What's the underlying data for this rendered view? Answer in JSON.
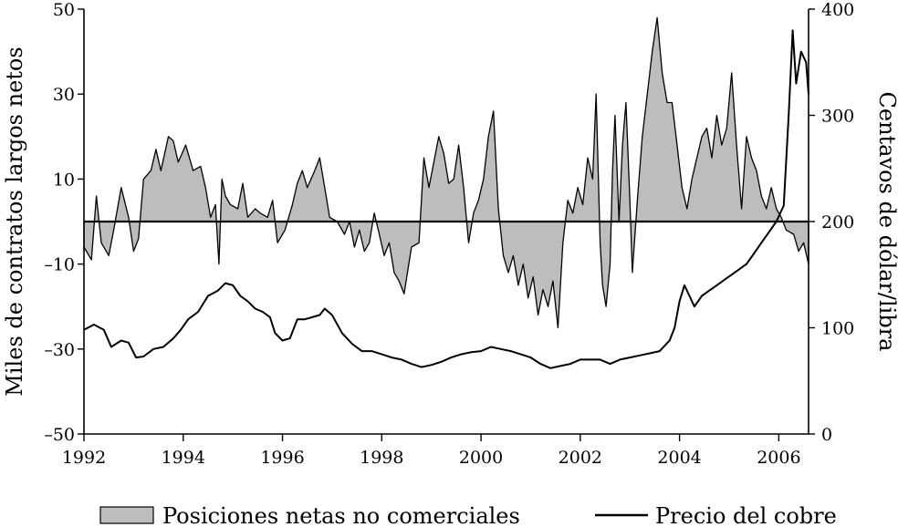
{
  "chart_data": {
    "type": "area",
    "title": "",
    "xlabel": "",
    "ylabel_left": "Miles de contratos largos netos",
    "ylabel_right": "Centavos de dólar/libra",
    "xlim": [
      1992,
      2006.6
    ],
    "ylim_left": [
      -50,
      50
    ],
    "ylim_right": [
      0,
      400
    ],
    "x_ticks": [
      1992,
      1994,
      1996,
      1998,
      2000,
      2002,
      2004,
      2006
    ],
    "x_tick_labels": [
      "1992",
      "1994",
      "1996",
      "1998",
      "2000",
      "2002",
      "2004",
      "2006"
    ],
    "y_left_ticks": [
      -50,
      -30,
      -10,
      10,
      30,
      50
    ],
    "y_left_tick_labels": [
      "–50",
      "–30",
      "–10",
      "10",
      "30",
      "50"
    ],
    "y_right_ticks": [
      0,
      100,
      200,
      300,
      400
    ],
    "y_right_tick_labels": [
      "0",
      "100",
      "200",
      "300",
      "400"
    ],
    "reference_line": {
      "axis": "right",
      "value": 200
    },
    "series": [
      {
        "name": "Posiciones netas no comerciales",
        "axis": "left",
        "style": "filled-area",
        "color": "#bdbdbd",
        "baseline": 0,
        "points": [
          [
            1992.0,
            -6
          ],
          [
            1992.15,
            -9
          ],
          [
            1992.25,
            6
          ],
          [
            1992.35,
            -5
          ],
          [
            1992.5,
            -8
          ],
          [
            1992.6,
            -2
          ],
          [
            1992.75,
            8
          ],
          [
            1992.9,
            1
          ],
          [
            1993.0,
            -7
          ],
          [
            1993.1,
            -4
          ],
          [
            1993.2,
            10
          ],
          [
            1993.35,
            12
          ],
          [
            1993.45,
            17
          ],
          [
            1993.55,
            12
          ],
          [
            1993.7,
            20
          ],
          [
            1993.8,
            19
          ],
          [
            1993.9,
            14
          ],
          [
            1994.05,
            18
          ],
          [
            1994.2,
            12
          ],
          [
            1994.35,
            13
          ],
          [
            1994.45,
            8
          ],
          [
            1994.55,
            1
          ],
          [
            1994.65,
            4
          ],
          [
            1994.72,
            -10
          ],
          [
            1994.78,
            10
          ],
          [
            1994.85,
            6
          ],
          [
            1994.95,
            4
          ],
          [
            1995.1,
            3
          ],
          [
            1995.2,
            9
          ],
          [
            1995.3,
            1
          ],
          [
            1995.45,
            3
          ],
          [
            1995.55,
            2
          ],
          [
            1995.7,
            1
          ],
          [
            1995.8,
            5
          ],
          [
            1995.9,
            -5
          ],
          [
            1996.05,
            -2
          ],
          [
            1996.2,
            4
          ],
          [
            1996.3,
            9
          ],
          [
            1996.4,
            12
          ],
          [
            1996.5,
            8
          ],
          [
            1996.65,
            12
          ],
          [
            1996.75,
            15
          ],
          [
            1996.85,
            8
          ],
          [
            1996.95,
            1
          ],
          [
            1997.1,
            0
          ],
          [
            1997.25,
            -3
          ],
          [
            1997.35,
            0
          ],
          [
            1997.45,
            -6
          ],
          [
            1997.55,
            -2
          ],
          [
            1997.65,
            -7
          ],
          [
            1997.75,
            -5
          ],
          [
            1997.85,
            2
          ],
          [
            1997.95,
            -3
          ],
          [
            1998.05,
            -8
          ],
          [
            1998.15,
            -5
          ],
          [
            1998.25,
            -12
          ],
          [
            1998.35,
            -14
          ],
          [
            1998.45,
            -17
          ],
          [
            1998.6,
            -6
          ],
          [
            1998.75,
            -5
          ],
          [
            1998.85,
            15
          ],
          [
            1998.95,
            8
          ],
          [
            1999.05,
            14
          ],
          [
            1999.15,
            20
          ],
          [
            1999.25,
            16
          ],
          [
            1999.35,
            9
          ],
          [
            1999.45,
            10
          ],
          [
            1999.55,
            18
          ],
          [
            1999.65,
            8
          ],
          [
            1999.75,
            -5
          ],
          [
            1999.85,
            2
          ],
          [
            1999.95,
            5
          ],
          [
            2000.05,
            10
          ],
          [
            2000.15,
            20
          ],
          [
            2000.25,
            26
          ],
          [
            2000.35,
            3
          ],
          [
            2000.45,
            -8
          ],
          [
            2000.55,
            -12
          ],
          [
            2000.65,
            -8
          ],
          [
            2000.75,
            -15
          ],
          [
            2000.85,
            -10
          ],
          [
            2000.95,
            -18
          ],
          [
            2001.05,
            -13
          ],
          [
            2001.15,
            -22
          ],
          [
            2001.25,
            -16
          ],
          [
            2001.35,
            -20
          ],
          [
            2001.45,
            -14
          ],
          [
            2001.55,
            -25
          ],
          [
            2001.65,
            -5
          ],
          [
            2001.75,
            5
          ],
          [
            2001.85,
            2
          ],
          [
            2001.95,
            8
          ],
          [
            2002.05,
            4
          ],
          [
            2002.15,
            15
          ],
          [
            2002.25,
            10
          ],
          [
            2002.32,
            30
          ],
          [
            2002.4,
            -5
          ],
          [
            2002.45,
            -15
          ],
          [
            2002.52,
            -20
          ],
          [
            2002.6,
            -10
          ],
          [
            2002.65,
            12
          ],
          [
            2002.7,
            25
          ],
          [
            2002.78,
            0
          ],
          [
            2002.85,
            18
          ],
          [
            2002.92,
            28
          ],
          [
            2003.0,
            5
          ],
          [
            2003.05,
            -12
          ],
          [
            2003.15,
            5
          ],
          [
            2003.25,
            20
          ],
          [
            2003.35,
            30
          ],
          [
            2003.45,
            40
          ],
          [
            2003.55,
            48
          ],
          [
            2003.65,
            35
          ],
          [
            2003.75,
            28
          ],
          [
            2003.85,
            28
          ],
          [
            2003.95,
            18
          ],
          [
            2004.05,
            8
          ],
          [
            2004.15,
            3
          ],
          [
            2004.25,
            10
          ],
          [
            2004.35,
            15
          ],
          [
            2004.45,
            20
          ],
          [
            2004.55,
            22
          ],
          [
            2004.65,
            15
          ],
          [
            2004.75,
            25
          ],
          [
            2004.85,
            18
          ],
          [
            2004.95,
            22
          ],
          [
            2005.05,
            35
          ],
          [
            2005.15,
            18
          ],
          [
            2005.25,
            3
          ],
          [
            2005.35,
            20
          ],
          [
            2005.45,
            15
          ],
          [
            2005.55,
            12
          ],
          [
            2005.65,
            6
          ],
          [
            2005.75,
            3
          ],
          [
            2005.85,
            8
          ],
          [
            2005.95,
            3
          ],
          [
            2006.05,
            1
          ],
          [
            2006.15,
            -2
          ],
          [
            2006.3,
            -3
          ],
          [
            2006.4,
            -7
          ],
          [
            2006.5,
            -5
          ],
          [
            2006.6,
            -10
          ]
        ]
      },
      {
        "name": "Precio del cobre",
        "axis": "right",
        "style": "line",
        "color": "#000000",
        "points": [
          [
            1992.0,
            98
          ],
          [
            1992.2,
            103
          ],
          [
            1992.4,
            98
          ],
          [
            1992.55,
            82
          ],
          [
            1992.75,
            88
          ],
          [
            1992.9,
            86
          ],
          [
            1993.05,
            72
          ],
          [
            1993.2,
            73
          ],
          [
            1993.4,
            80
          ],
          [
            1993.6,
            82
          ],
          [
            1993.8,
            90
          ],
          [
            1993.95,
            98
          ],
          [
            1994.1,
            108
          ],
          [
            1994.3,
            115
          ],
          [
            1994.5,
            130
          ],
          [
            1994.7,
            135
          ],
          [
            1994.85,
            142
          ],
          [
            1995.0,
            140
          ],
          [
            1995.15,
            130
          ],
          [
            1995.3,
            125
          ],
          [
            1995.45,
            118
          ],
          [
            1995.6,
            115
          ],
          [
            1995.75,
            110
          ],
          [
            1995.85,
            95
          ],
          [
            1996.0,
            88
          ],
          [
            1996.15,
            90
          ],
          [
            1996.3,
            108
          ],
          [
            1996.45,
            108
          ],
          [
            1996.6,
            110
          ],
          [
            1996.75,
            112
          ],
          [
            1996.85,
            118
          ],
          [
            1997.0,
            112
          ],
          [
            1997.2,
            95
          ],
          [
            1997.4,
            85
          ],
          [
            1997.6,
            78
          ],
          [
            1997.8,
            78
          ],
          [
            1998.0,
            75
          ],
          [
            1998.2,
            72
          ],
          [
            1998.4,
            70
          ],
          [
            1998.6,
            66
          ],
          [
            1998.8,
            63
          ],
          [
            1999.0,
            65
          ],
          [
            1999.2,
            68
          ],
          [
            1999.4,
            72
          ],
          [
            1999.6,
            75
          ],
          [
            1999.8,
            77
          ],
          [
            2000.0,
            78
          ],
          [
            2000.2,
            82
          ],
          [
            2000.4,
            80
          ],
          [
            2000.6,
            78
          ],
          [
            2000.8,
            75
          ],
          [
            2001.0,
            72
          ],
          [
            2001.2,
            66
          ],
          [
            2001.4,
            62
          ],
          [
            2001.6,
            64
          ],
          [
            2001.8,
            66
          ],
          [
            2002.0,
            70
          ],
          [
            2002.2,
            70
          ],
          [
            2002.4,
            70
          ],
          [
            2002.6,
            66
          ],
          [
            2002.8,
            70
          ],
          [
            2003.0,
            72
          ],
          [
            2003.2,
            74
          ],
          [
            2003.4,
            76
          ],
          [
            2003.6,
            78
          ],
          [
            2003.8,
            88
          ],
          [
            2003.9,
            100
          ],
          [
            2004.0,
            125
          ],
          [
            2004.1,
            140
          ],
          [
            2004.2,
            130
          ],
          [
            2004.3,
            120
          ],
          [
            2004.45,
            130
          ],
          [
            2004.6,
            135
          ],
          [
            2004.75,
            140
          ],
          [
            2004.9,
            145
          ],
          [
            2005.05,
            150
          ],
          [
            2005.2,
            155
          ],
          [
            2005.35,
            160
          ],
          [
            2005.5,
            170
          ],
          [
            2005.65,
            180
          ],
          [
            2005.8,
            190
          ],
          [
            2005.95,
            200
          ],
          [
            2006.1,
            215
          ],
          [
            2006.2,
            300
          ],
          [
            2006.28,
            380
          ],
          [
            2006.35,
            330
          ],
          [
            2006.45,
            360
          ],
          [
            2006.55,
            350
          ],
          [
            2006.6,
            320
          ]
        ]
      }
    ],
    "legend": {
      "position": "bottom",
      "entries": [
        {
          "label": "Posiciones netas no comerciales",
          "symbol": "swatch"
        },
        {
          "label": "Precio del cobre",
          "symbol": "line"
        }
      ]
    }
  }
}
